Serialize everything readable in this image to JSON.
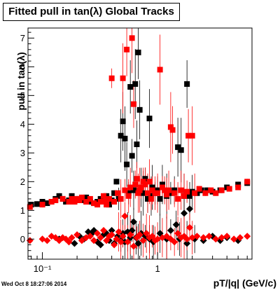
{
  "title": "Fitted pull in tan(λ)  Global Tracks",
  "timestamp": "Wed Oct  8 18:27:06 2014",
  "chart_data": {
    "type": "scatter",
    "title": "Fitted pull in tan(λ)  Global Tracks",
    "xlabel": "pT/|q| (GeV/c)",
    "ylabel": "pull in tan(λ)",
    "xscale": "log",
    "xlim": [
      0.075,
      6.6
    ],
    "ylim": [
      -0.7,
      7.35
    ],
    "x_tick_labels": [
      {
        "value": 0.1,
        "label": "10⁻¹"
      },
      {
        "value": 1,
        "label": "1"
      }
    ],
    "y_tick_labels": [
      "0",
      "1",
      "2",
      "3",
      "4",
      "5",
      "6",
      "7"
    ],
    "grid": false,
    "series": [
      {
        "marker": "square",
        "color": "#000000",
        "points": [
          [
            0.08,
            1.2
          ],
          [
            0.09,
            1.22
          ],
          [
            0.1,
            1.3
          ],
          [
            0.11,
            1.25
          ],
          [
            0.12,
            1.3
          ],
          [
            0.13,
            1.4
          ],
          [
            0.14,
            1.5
          ],
          [
            0.15,
            1.4
          ],
          [
            0.16,
            1.3
          ],
          [
            0.17,
            1.35
          ],
          [
            0.18,
            1.5
          ],
          [
            0.19,
            1.3
          ],
          [
            0.2,
            1.4
          ],
          [
            0.22,
            1.35
          ],
          [
            0.24,
            1.45
          ],
          [
            0.26,
            1.3
          ],
          [
            0.28,
            1.25
          ],
          [
            0.3,
            1.3
          ],
          [
            0.32,
            1.4
          ],
          [
            0.34,
            1.3
          ],
          [
            0.36,
            1.5
          ],
          [
            0.38,
            1.2
          ],
          [
            0.4,
            1.35
          ],
          [
            0.42,
            1.6
          ],
          [
            0.44,
            2.0
          ],
          [
            0.46,
            1.4
          ],
          [
            0.48,
            3.6
          ],
          [
            0.5,
            4.1
          ],
          [
            0.52,
            3.5
          ],
          [
            0.54,
            2.6
          ],
          [
            0.56,
            1.6
          ],
          [
            0.58,
            5.3
          ],
          [
            0.6,
            2.9
          ],
          [
            0.62,
            1.7
          ],
          [
            0.64,
            5.4
          ],
          [
            0.66,
            3.3
          ],
          [
            0.68,
            6.5
          ],
          [
            0.7,
            4.5
          ],
          [
            0.72,
            1.8
          ],
          [
            0.75,
            1.6
          ],
          [
            0.78,
            2.1
          ],
          [
            0.82,
            1.4
          ],
          [
            0.85,
            4.2
          ],
          [
            0.88,
            1.5
          ],
          [
            0.9,
            1.8
          ],
          [
            0.95,
            1.6
          ],
          [
            1.0,
            1.7
          ],
          [
            1.05,
            1.4
          ],
          [
            1.1,
            1.9
          ],
          [
            1.2,
            1.5
          ],
          [
            1.3,
            1.6
          ],
          [
            1.4,
            1.7
          ],
          [
            1.5,
            3.2
          ],
          [
            1.6,
            3.1
          ],
          [
            1.7,
            1.5
          ],
          [
            1.8,
            5.4
          ],
          [
            1.9,
            1.5
          ],
          [
            2.0,
            1.65
          ],
          [
            2.2,
            1.6
          ],
          [
            2.4,
            1.7
          ],
          [
            2.7,
            1.7
          ],
          [
            3.0,
            1.65
          ],
          [
            3.5,
            1.7
          ],
          [
            4.0,
            1.8
          ],
          [
            5.0,
            1.9
          ],
          [
            6.0,
            1.95
          ]
        ]
      },
      {
        "marker": "square",
        "color": "#ff0000",
        "points": [
          [
            0.078,
            1.12
          ],
          [
            0.1,
            1.2
          ],
          [
            0.12,
            1.3
          ],
          [
            0.13,
            1.35
          ],
          [
            0.15,
            1.4
          ],
          [
            0.17,
            1.3
          ],
          [
            0.18,
            1.4
          ],
          [
            0.19,
            1.3
          ],
          [
            0.2,
            1.4
          ],
          [
            0.21,
            1.35
          ],
          [
            0.22,
            1.45
          ],
          [
            0.24,
            1.3
          ],
          [
            0.26,
            1.4
          ],
          [
            0.28,
            1.25
          ],
          [
            0.3,
            1.2
          ],
          [
            0.32,
            1.3
          ],
          [
            0.34,
            1.5
          ],
          [
            0.35,
            1.3
          ],
          [
            0.36,
            1.2
          ],
          [
            0.38,
            1.4
          ],
          [
            0.4,
            5.6
          ],
          [
            0.42,
            1.3
          ],
          [
            0.45,
            1.6
          ],
          [
            0.48,
            1.4
          ],
          [
            0.5,
            5.6
          ],
          [
            0.52,
            1.7
          ],
          [
            0.54,
            6.6
          ],
          [
            0.56,
            1.5
          ],
          [
            0.58,
            1.8
          ],
          [
            0.6,
            7.0
          ],
          [
            0.62,
            4.7
          ],
          [
            0.64,
            1.9
          ],
          [
            0.66,
            2.1
          ],
          [
            0.68,
            1.6
          ],
          [
            0.7,
            1.7
          ],
          [
            0.72,
            1.8
          ],
          [
            0.75,
            2.0
          ],
          [
            0.78,
            1.9
          ],
          [
            0.82,
            1.6
          ],
          [
            0.85,
            2.0
          ],
          [
            0.88,
            1.4
          ],
          [
            0.9,
            1.7
          ],
          [
            0.95,
            1.6
          ],
          [
            1.0,
            1.6
          ],
          [
            1.05,
            5.9
          ],
          [
            1.1,
            1.8
          ],
          [
            1.15,
            1.7
          ],
          [
            1.2,
            1.55
          ],
          [
            1.25,
            1.7
          ],
          [
            1.3,
            3.9
          ],
          [
            1.35,
            3.8
          ],
          [
            1.4,
            1.6
          ],
          [
            1.5,
            1.4
          ],
          [
            1.6,
            1.7
          ],
          [
            1.7,
            1.5
          ],
          [
            1.8,
            1.65
          ],
          [
            1.85,
            3.6
          ],
          [
            2.0,
            3.6
          ],
          [
            2.1,
            1.6
          ],
          [
            2.3,
            1.75
          ],
          [
            2.6,
            1.6
          ],
          [
            2.9,
            1.7
          ],
          [
            3.2,
            1.6
          ],
          [
            3.6,
            1.7
          ],
          [
            4.2,
            1.75
          ],
          [
            5.0,
            1.8
          ],
          [
            6.0,
            2.0
          ]
        ]
      },
      {
        "marker": "diamond",
        "color": "#000000",
        "points": [
          [
            0.14,
            0.0
          ],
          [
            0.19,
            -0.15
          ],
          [
            0.21,
            0.1
          ],
          [
            0.23,
            0.0
          ],
          [
            0.25,
            0.25
          ],
          [
            0.27,
            0.2
          ],
          [
            0.28,
            0.3
          ],
          [
            0.3,
            -0.1
          ],
          [
            0.32,
            -0.2
          ],
          [
            0.34,
            0.15
          ],
          [
            0.36,
            0.2
          ],
          [
            0.38,
            -0.05
          ],
          [
            0.4,
            0.3
          ],
          [
            0.42,
            -0.15
          ],
          [
            0.45,
            0.1
          ],
          [
            0.48,
            -0.05
          ],
          [
            0.5,
            0.2
          ],
          [
            0.52,
            -0.1
          ],
          [
            0.55,
            0.25
          ],
          [
            0.58,
            0.05
          ],
          [
            0.6,
            0.3
          ],
          [
            0.62,
            0.6
          ],
          [
            0.65,
            0.05
          ],
          [
            0.68,
            -0.15
          ],
          [
            0.72,
            0.2
          ],
          [
            0.78,
            0.1
          ],
          [
            0.85,
            0.0
          ],
          [
            0.92,
            -0.1
          ],
          [
            1.05,
            0.2
          ],
          [
            1.2,
            0.0
          ],
          [
            1.3,
            0.3
          ],
          [
            1.45,
            0.5
          ],
          [
            1.55,
            0.0
          ],
          [
            1.7,
            0.9
          ],
          [
            1.8,
            -0.15
          ],
          [
            1.9,
            1.05
          ],
          [
            2.1,
            0.0
          ],
          [
            2.5,
            -0.05
          ],
          [
            3.0,
            0.1
          ],
          [
            3.5,
            -0.05
          ],
          [
            4.0,
            0.05
          ],
          [
            5.0,
            -0.05
          ]
        ]
      },
      {
        "marker": "diamond",
        "color": "#ff0000",
        "points": [
          [
            0.078,
            -0.05
          ],
          [
            0.1,
            0.0
          ],
          [
            0.11,
            -0.05
          ],
          [
            0.12,
            0.1
          ],
          [
            0.13,
            0.05
          ],
          [
            0.14,
            -0.05
          ],
          [
            0.15,
            0.05
          ],
          [
            0.16,
            0.0
          ],
          [
            0.17,
            -0.1
          ],
          [
            0.18,
            0.05
          ],
          [
            0.2,
            0.15
          ],
          [
            0.22,
            -0.05
          ],
          [
            0.24,
            0.05
          ],
          [
            0.26,
            0.1
          ],
          [
            0.28,
            -0.05
          ],
          [
            0.3,
            0.2
          ],
          [
            0.32,
            0.05
          ],
          [
            0.34,
            0.3
          ],
          [
            0.36,
            -0.05
          ],
          [
            0.38,
            0.1
          ],
          [
            0.4,
            0.15
          ],
          [
            0.42,
            -0.2
          ],
          [
            0.44,
            0.0
          ],
          [
            0.46,
            0.25
          ],
          [
            0.48,
            -0.1
          ],
          [
            0.5,
            0.1
          ],
          [
            0.52,
            0.8
          ],
          [
            0.55,
            -0.1
          ],
          [
            0.58,
            0.15
          ],
          [
            0.62,
            -0.25
          ],
          [
            0.66,
            0.05
          ],
          [
            0.7,
            0.15
          ],
          [
            0.75,
            -0.05
          ],
          [
            0.8,
            0.2
          ],
          [
            0.85,
            0.05
          ],
          [
            0.9,
            0.1
          ],
          [
            0.95,
            -0.05
          ],
          [
            1.0,
            0.0
          ],
          [
            1.1,
            0.05
          ],
          [
            1.2,
            0.1
          ],
          [
            1.3,
            0.0
          ],
          [
            1.4,
            -0.1
          ],
          [
            1.5,
            0.2
          ],
          [
            1.6,
            0.05
          ],
          [
            1.7,
            0.1
          ],
          [
            1.8,
            0.0
          ],
          [
            1.9,
            0.4
          ],
          [
            2.0,
            0.05
          ],
          [
            2.2,
            0.1
          ],
          [
            2.5,
            0.05
          ],
          [
            2.8,
            0.1
          ],
          [
            3.2,
            0.0
          ],
          [
            3.6,
            0.05
          ],
          [
            4.0,
            0.1
          ],
          [
            4.6,
            0.0
          ],
          [
            5.2,
            0.05
          ],
          [
            6.0,
            0.1
          ]
        ]
      }
    ]
  }
}
